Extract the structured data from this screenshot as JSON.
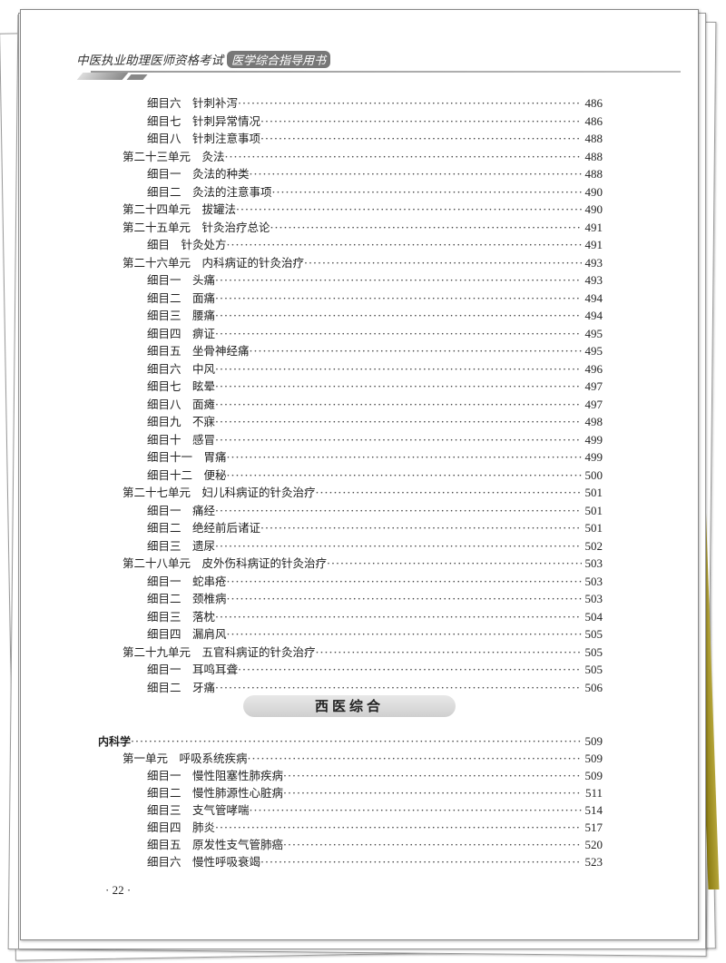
{
  "header": {
    "title": "中医执业助理医师资格考试",
    "tag": "医学综合指导用书"
  },
  "toc_part1": [
    {
      "level": 2,
      "label": "细目六",
      "title": "针刺补泻",
      "page": "486"
    },
    {
      "level": 2,
      "label": "细目七",
      "title": "针刺异常情况",
      "page": "486"
    },
    {
      "level": 2,
      "label": "细目八",
      "title": "针刺注意事项",
      "page": "488"
    },
    {
      "level": 1,
      "label": "第二十三单元",
      "title": "灸法",
      "page": "488"
    },
    {
      "level": 2,
      "label": "细目一",
      "title": "灸法的种类",
      "page": "488"
    },
    {
      "level": 2,
      "label": "细目二",
      "title": "灸法的注意事项",
      "page": "490"
    },
    {
      "level": 1,
      "label": "第二十四单元",
      "title": "拔罐法",
      "page": "490"
    },
    {
      "level": 1,
      "label": "第二十五单元",
      "title": "针灸治疗总论",
      "page": "491"
    },
    {
      "level": 2,
      "label": "细目",
      "title": "针灸处方",
      "page": "491"
    },
    {
      "level": 1,
      "label": "第二十六单元",
      "title": "内科病证的针灸治疗",
      "page": "493"
    },
    {
      "level": 2,
      "label": "细目一",
      "title": "头痛",
      "page": "493"
    },
    {
      "level": 2,
      "label": "细目二",
      "title": "面痛",
      "page": "494"
    },
    {
      "level": 2,
      "label": "细目三",
      "title": "腰痛",
      "page": "494"
    },
    {
      "level": 2,
      "label": "细目四",
      "title": "痹证",
      "page": "495"
    },
    {
      "level": 2,
      "label": "细目五",
      "title": "坐骨神经痛",
      "page": "495"
    },
    {
      "level": 2,
      "label": "细目六",
      "title": "中风",
      "page": "496"
    },
    {
      "level": 2,
      "label": "细目七",
      "title": "眩晕",
      "page": "497"
    },
    {
      "level": 2,
      "label": "细目八",
      "title": "面瘫",
      "page": "497"
    },
    {
      "level": 2,
      "label": "细目九",
      "title": "不寐",
      "page": "498"
    },
    {
      "level": 2,
      "label": "细目十",
      "title": "感冒",
      "page": "499"
    },
    {
      "level": 2,
      "label": "细目十一",
      "title": "胃痛",
      "page": "499"
    },
    {
      "level": 2,
      "label": "细目十二",
      "title": "便秘",
      "page": "500"
    },
    {
      "level": 1,
      "label": "第二十七单元",
      "title": "妇儿科病证的针灸治疗",
      "page": "501"
    },
    {
      "level": 2,
      "label": "细目一",
      "title": "痛经",
      "page": "501"
    },
    {
      "level": 2,
      "label": "细目二",
      "title": "绝经前后诸证",
      "page": "501"
    },
    {
      "level": 2,
      "label": "细目三",
      "title": "遗尿",
      "page": "502"
    },
    {
      "level": 1,
      "label": "第二十八单元",
      "title": "皮外伤科病证的针灸治疗",
      "page": "503"
    },
    {
      "level": 2,
      "label": "细目一",
      "title": "蛇串疮",
      "page": "503"
    },
    {
      "level": 2,
      "label": "细目二",
      "title": "颈椎病",
      "page": "503"
    },
    {
      "level": 2,
      "label": "细目三",
      "title": "落枕",
      "page": "504"
    },
    {
      "level": 2,
      "label": "细目四",
      "title": "漏肩风",
      "page": "505"
    },
    {
      "level": 1,
      "label": "第二十九单元",
      "title": "五官科病证的针灸治疗",
      "page": "505"
    },
    {
      "level": 2,
      "label": "细目一",
      "title": "耳鸣耳聋",
      "page": "505"
    },
    {
      "level": 2,
      "label": "细目二",
      "title": "牙痛",
      "page": "506"
    }
  ],
  "section_title": "西医综合",
  "toc_part2": [
    {
      "level": 0,
      "label": "内科学",
      "title": "",
      "page": "509"
    },
    {
      "level": 1,
      "label": "第一单元",
      "title": "呼吸系统疾病",
      "page": "509"
    },
    {
      "level": 2,
      "label": "细目一",
      "title": "慢性阻塞性肺疾病",
      "page": "509"
    },
    {
      "level": 2,
      "label": "细目二",
      "title": "慢性肺源性心脏病",
      "page": "511"
    },
    {
      "level": 2,
      "label": "细目三",
      "title": "支气管哮喘",
      "page": "514"
    },
    {
      "level": 2,
      "label": "细目四",
      "title": "肺炎",
      "page": "517"
    },
    {
      "level": 2,
      "label": "细目五",
      "title": "原发性支气管肺癌",
      "page": "520"
    },
    {
      "level": 2,
      "label": "细目六",
      "title": "慢性呼吸衰竭",
      "page": "523"
    }
  ],
  "folio": "· 22 ·"
}
